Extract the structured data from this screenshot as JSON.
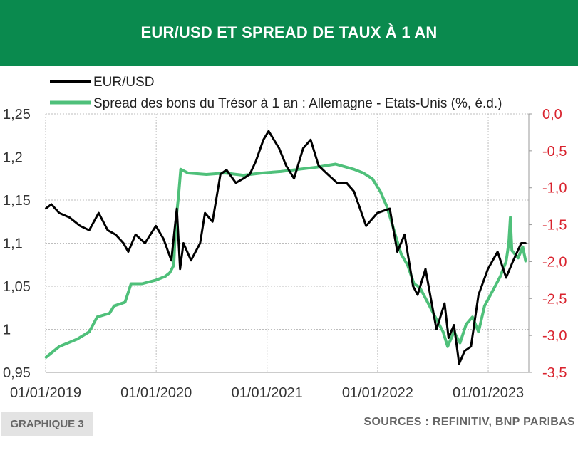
{
  "header": {
    "title": "EUR/USD ET SPREAD DE TAUX À 1 AN"
  },
  "footer": {
    "tag": "GRAPHIQUE 3",
    "sources": "SOURCES : REFINITIV, BNP PARIBAS"
  },
  "colors": {
    "banner": "#0a8a4e",
    "eurusd": "#000000",
    "spread": "#4fc07a",
    "right_axis": "#d9232e"
  },
  "chart_data": {
    "type": "line",
    "title": "EUR/USD ET SPREAD DE TAUX À 1 AN",
    "x_tick_labels": [
      "01/01/2019",
      "01/01/2020",
      "01/01/2021",
      "01/01/2022",
      "01/01/2023"
    ],
    "xlim": [
      "2019-01-01",
      "2023-05-15"
    ],
    "y_left": {
      "ticks": [
        "0,95",
        "1",
        "1,05",
        "1,1",
        "1,15",
        "1,2",
        "1,25"
      ],
      "range": [
        0.95,
        1.25
      ]
    },
    "y_right": {
      "ticks": [
        "0,0",
        "-0,5",
        "-1,0",
        "-1,5",
        "-2,0",
        "-2,5",
        "-3,0",
        "-3,5"
      ],
      "range": [
        -3.5,
        0.0
      ],
      "color": "#d9232e"
    },
    "grid": true,
    "legend_position": "top-left",
    "series": [
      {
        "name": "EUR/USD",
        "axis": "left",
        "color": "#000000",
        "points": [
          [
            "2019-01-01",
            1.14
          ],
          [
            "2019-01-20",
            1.145
          ],
          [
            "2019-02-15",
            1.135
          ],
          [
            "2019-03-20",
            1.13
          ],
          [
            "2019-04-25",
            1.12
          ],
          [
            "2019-05-25",
            1.115
          ],
          [
            "2019-06-25",
            1.135
          ],
          [
            "2019-07-25",
            1.115
          ],
          [
            "2019-08-20",
            1.11
          ],
          [
            "2019-09-15",
            1.1
          ],
          [
            "2019-10-01",
            1.09
          ],
          [
            "2019-10-25",
            1.11
          ],
          [
            "2019-11-25",
            1.1
          ],
          [
            "2019-12-31",
            1.12
          ],
          [
            "2020-01-25",
            1.105
          ],
          [
            "2020-02-20",
            1.08
          ],
          [
            "2020-03-09",
            1.14
          ],
          [
            "2020-03-20",
            1.07
          ],
          [
            "2020-03-31",
            1.1
          ],
          [
            "2020-04-25",
            1.08
          ],
          [
            "2020-05-25",
            1.1
          ],
          [
            "2020-06-10",
            1.135
          ],
          [
            "2020-07-05",
            1.125
          ],
          [
            "2020-07-31",
            1.18
          ],
          [
            "2020-08-20",
            1.185
          ],
          [
            "2020-09-20",
            1.17
          ],
          [
            "2020-10-15",
            1.175
          ],
          [
            "2020-11-05",
            1.18
          ],
          [
            "2020-11-25",
            1.195
          ],
          [
            "2020-12-20",
            1.22
          ],
          [
            "2021-01-06",
            1.23
          ],
          [
            "2021-02-10",
            1.21
          ],
          [
            "2021-03-05",
            1.19
          ],
          [
            "2021-03-31",
            1.175
          ],
          [
            "2021-04-30",
            1.21
          ],
          [
            "2021-05-25",
            1.22
          ],
          [
            "2021-06-20",
            1.19
          ],
          [
            "2021-07-20",
            1.18
          ],
          [
            "2021-08-20",
            1.17
          ],
          [
            "2021-09-20",
            1.17
          ],
          [
            "2021-10-15",
            1.16
          ],
          [
            "2021-11-24",
            1.12
          ],
          [
            "2021-12-31",
            1.135
          ],
          [
            "2022-02-10",
            1.14
          ],
          [
            "2022-03-07",
            1.09
          ],
          [
            "2022-03-31",
            1.11
          ],
          [
            "2022-04-28",
            1.05
          ],
          [
            "2022-05-13",
            1.04
          ],
          [
            "2022-06-08",
            1.07
          ],
          [
            "2022-07-14",
            1.0
          ],
          [
            "2022-08-10",
            1.03
          ],
          [
            "2022-08-23",
            0.99
          ],
          [
            "2022-09-10",
            1.005
          ],
          [
            "2022-09-27",
            0.96
          ],
          [
            "2022-10-15",
            0.975
          ],
          [
            "2022-11-05",
            0.98
          ],
          [
            "2022-11-30",
            1.04
          ],
          [
            "2022-12-31",
            1.07
          ],
          [
            "2023-02-01",
            1.09
          ],
          [
            "2023-03-01",
            1.06
          ],
          [
            "2023-03-25",
            1.08
          ],
          [
            "2023-04-20",
            1.1
          ],
          [
            "2023-05-05",
            1.1
          ]
        ]
      },
      {
        "name": "Spread des bons du Trésor à 1 an : Allemagne - Etats-Unis (%, é.d.)",
        "axis": "right",
        "color": "#4fc07a",
        "points": [
          [
            "2019-01-01",
            -3.3
          ],
          [
            "2019-02-15",
            -3.15
          ],
          [
            "2019-04-15",
            -3.05
          ],
          [
            "2019-05-25",
            -2.95
          ],
          [
            "2019-06-20",
            -2.75
          ],
          [
            "2019-07-31",
            -2.7
          ],
          [
            "2019-08-15",
            -2.6
          ],
          [
            "2019-09-20",
            -2.55
          ],
          [
            "2019-10-10",
            -2.3
          ],
          [
            "2019-11-15",
            -2.3
          ],
          [
            "2019-12-31",
            -2.25
          ],
          [
            "2020-01-31",
            -2.2
          ],
          [
            "2020-02-15",
            -2.15
          ],
          [
            "2020-02-28",
            -2.05
          ],
          [
            "2020-03-05",
            -1.5
          ],
          [
            "2020-03-15",
            -1.1
          ],
          [
            "2020-03-22",
            -0.75
          ],
          [
            "2020-04-15",
            -0.8
          ],
          [
            "2020-06-15",
            -0.82
          ],
          [
            "2020-08-15",
            -0.8
          ],
          [
            "2020-10-15",
            -0.83
          ],
          [
            "2020-12-15",
            -0.8
          ],
          [
            "2021-02-15",
            -0.78
          ],
          [
            "2021-04-15",
            -0.75
          ],
          [
            "2021-06-15",
            -0.72
          ],
          [
            "2021-08-15",
            -0.68
          ],
          [
            "2021-10-15",
            -0.75
          ],
          [
            "2021-11-15",
            -0.8
          ],
          [
            "2021-12-15",
            -0.88
          ],
          [
            "2022-01-10",
            -1.05
          ],
          [
            "2022-01-31",
            -1.25
          ],
          [
            "2022-02-15",
            -1.45
          ],
          [
            "2022-03-01",
            -1.65
          ],
          [
            "2022-03-20",
            -1.9
          ],
          [
            "2022-04-10",
            -2.05
          ],
          [
            "2022-05-01",
            -2.3
          ],
          [
            "2022-05-20",
            -2.35
          ],
          [
            "2022-06-15",
            -2.55
          ],
          [
            "2022-07-10",
            -2.75
          ],
          [
            "2022-08-05",
            -2.95
          ],
          [
            "2022-08-20",
            -3.15
          ],
          [
            "2022-09-10",
            -2.95
          ],
          [
            "2022-09-30",
            -3.1
          ],
          [
            "2022-10-20",
            -2.85
          ],
          [
            "2022-11-10",
            -2.75
          ],
          [
            "2022-11-30",
            -2.95
          ],
          [
            "2022-12-20",
            -2.6
          ],
          [
            "2023-01-15",
            -2.4
          ],
          [
            "2023-02-10",
            -2.2
          ],
          [
            "2023-03-01",
            -2.0
          ],
          [
            "2023-03-10",
            -1.75
          ],
          [
            "2023-03-15",
            -1.4
          ],
          [
            "2023-03-20",
            -1.85
          ],
          [
            "2023-04-10",
            -1.95
          ],
          [
            "2023-04-25",
            -1.8
          ],
          [
            "2023-05-05",
            -2.0
          ]
        ]
      }
    ]
  }
}
